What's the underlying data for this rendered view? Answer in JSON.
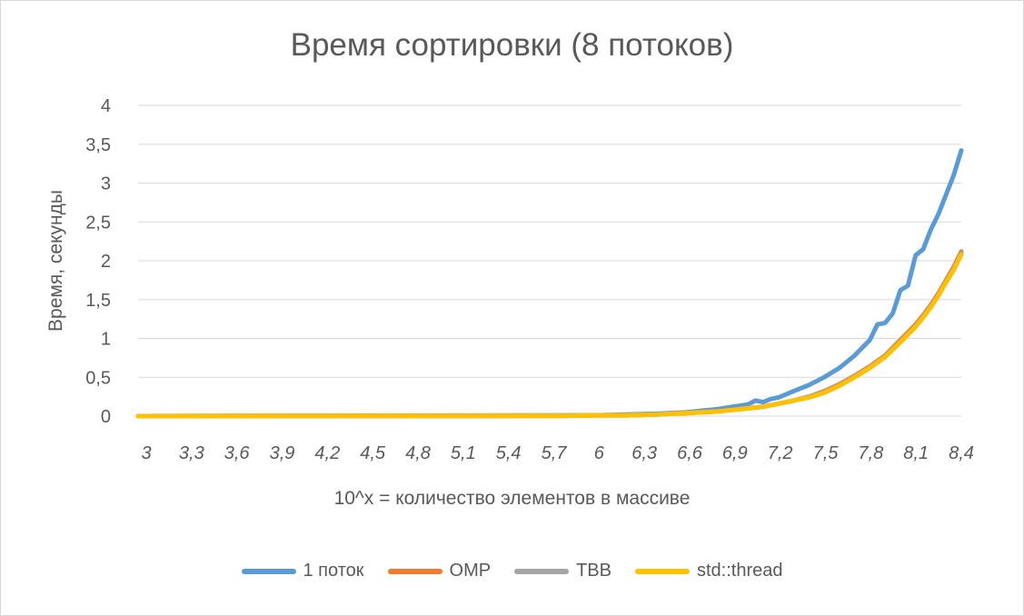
{
  "chart_data": {
    "type": "line",
    "title": "Время сортировки (8 потоков)",
    "xlabel": "10^x = количество элементов в массиве",
    "ylabel": "Время, секунды",
    "ylim": [
      0,
      4
    ],
    "yticks": [
      "0",
      "0,5",
      "1",
      "1,5",
      "2",
      "2,5",
      "3",
      "3,5",
      "4"
    ],
    "xlim": [
      3,
      8.4
    ],
    "xticks": [
      "3",
      "3,3",
      "3,6",
      "3,9",
      "4,2",
      "4,5",
      "4,8",
      "5,1",
      "5,4",
      "5,7",
      "6",
      "6,3",
      "6,6",
      "6,9",
      "7,2",
      "7,5",
      "7,8",
      "8,1",
      "8,4"
    ],
    "grid": true,
    "legend_position": "bottom",
    "series": [
      {
        "name": "1 поток",
        "color": "#5b9bd5",
        "x": [
          3,
          5.8,
          6.0,
          6.2,
          6.4,
          6.5,
          6.6,
          6.7,
          6.8,
          6.9,
          7.0,
          7.05,
          7.1,
          7.15,
          7.2,
          7.3,
          7.4,
          7.5,
          7.6,
          7.7,
          7.75,
          7.8,
          7.85,
          7.9,
          7.95,
          8.0,
          8.05,
          8.1,
          8.15,
          8.2,
          8.25,
          8.3,
          8.35,
          8.4
        ],
        "values": [
          0,
          0.01,
          0.01,
          0.02,
          0.03,
          0.04,
          0.05,
          0.07,
          0.09,
          0.12,
          0.15,
          0.2,
          0.18,
          0.22,
          0.24,
          0.32,
          0.4,
          0.5,
          0.62,
          0.78,
          0.88,
          0.98,
          1.18,
          1.2,
          1.32,
          1.62,
          1.68,
          2.07,
          2.15,
          2.4,
          2.6,
          2.85,
          3.1,
          3.42
        ]
      },
      {
        "name": "OMP",
        "color": "#ed7d31",
        "x": [
          3,
          5.8,
          6.0,
          6.2,
          6.4,
          6.5,
          6.6,
          6.7,
          6.8,
          6.9,
          7.0,
          7.1,
          7.2,
          7.3,
          7.4,
          7.5,
          7.6,
          7.7,
          7.8,
          7.9,
          8.0,
          8.05,
          8.1,
          8.15,
          8.2,
          8.25,
          8.3,
          8.35,
          8.4
        ],
        "values": [
          0,
          0.005,
          0.01,
          0.01,
          0.02,
          0.03,
          0.04,
          0.05,
          0.06,
          0.08,
          0.1,
          0.12,
          0.16,
          0.2,
          0.25,
          0.32,
          0.41,
          0.52,
          0.64,
          0.78,
          0.98,
          1.08,
          1.18,
          1.3,
          1.43,
          1.58,
          1.75,
          1.92,
          2.12
        ]
      },
      {
        "name": "TBB",
        "color": "#a5a5a5",
        "x": [
          3,
          5.8,
          6.0,
          6.2,
          6.4,
          6.5,
          6.6,
          6.7,
          6.8,
          6.9,
          7.0,
          7.1,
          7.2,
          7.3,
          7.4,
          7.5,
          7.6,
          7.7,
          7.8,
          7.9,
          8.0,
          8.05,
          8.1,
          8.15,
          8.2,
          8.25,
          8.3,
          8.35,
          8.4
        ],
        "values": [
          0,
          0.005,
          0.01,
          0.01,
          0.02,
          0.03,
          0.04,
          0.05,
          0.06,
          0.08,
          0.1,
          0.12,
          0.16,
          0.2,
          0.25,
          0.31,
          0.4,
          0.51,
          0.63,
          0.77,
          0.96,
          1.06,
          1.16,
          1.28,
          1.41,
          1.56,
          1.73,
          1.9,
          2.1
        ]
      },
      {
        "name": "std::thread",
        "color": "#ffc000",
        "x": [
          3,
          5.8,
          6.0,
          6.2,
          6.4,
          6.5,
          6.6,
          6.7,
          6.8,
          6.9,
          7.0,
          7.1,
          7.2,
          7.3,
          7.4,
          7.5,
          7.6,
          7.7,
          7.8,
          7.9,
          8.0,
          8.05,
          8.1,
          8.15,
          8.2,
          8.25,
          8.3,
          8.35,
          8.4
        ],
        "values": [
          0,
          0.005,
          0.01,
          0.01,
          0.02,
          0.03,
          0.04,
          0.05,
          0.06,
          0.08,
          0.1,
          0.12,
          0.16,
          0.2,
          0.24,
          0.3,
          0.39,
          0.5,
          0.62,
          0.76,
          0.95,
          1.05,
          1.15,
          1.27,
          1.4,
          1.55,
          1.72,
          1.88,
          2.08
        ]
      }
    ]
  }
}
